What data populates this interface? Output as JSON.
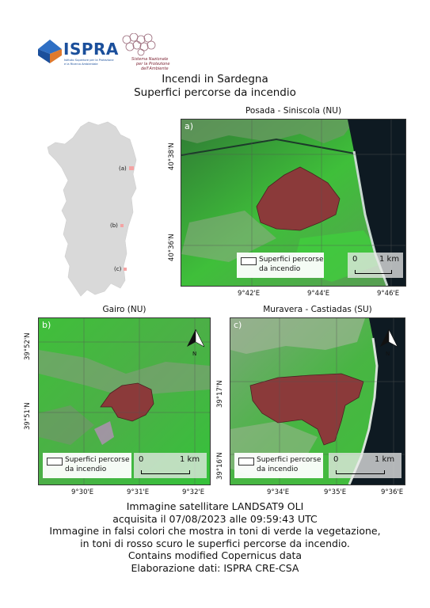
{
  "header": {
    "ispra_name": "ISPRA",
    "ispra_subtitle_1": "Istituto Superiore per la Protezione",
    "ispra_subtitle_2": "e la Ricerca Ambientale",
    "snpa_line_1": "Sistema Nazionale",
    "snpa_line_2": "per la Protezione",
    "snpa_line_3": "dell'Ambiente",
    "brand_color": "#1b4f9b"
  },
  "title_lines": [
    "Incendi in Sardegna",
    "Superfici percorse da incendio"
  ],
  "overview": {
    "markers": [
      {
        "label": "(a)",
        "site": "Posada - Siniscola"
      },
      {
        "label": "(b)",
        "site": "Gairo"
      },
      {
        "label": "(c)",
        "site": "Muravera - Castiadas"
      }
    ],
    "land_color": "#d9d9d9",
    "marker_color": "#f4a3a3"
  },
  "panels": [
    {
      "id": "a",
      "title": "Posada - Siniscola (NU)",
      "letter": "a)",
      "lon_ticks": [
        "9°42'E",
        "9°44'E",
        "9°46'E"
      ],
      "lat_ticks": [
        "40°38'N",
        "40°36'N"
      ],
      "legend_line_1": "Superfici percorse",
      "legend_line_2": "da incendio",
      "scale": {
        "start": "0",
        "end": "1 km"
      }
    },
    {
      "id": "b",
      "title": "Gairo (NU)",
      "letter": "b)",
      "lon_ticks": [
        "9°30'E",
        "9°31'E",
        "9°32'E"
      ],
      "lat_ticks": [
        "39°52'N",
        "39°51'N"
      ],
      "legend_line_1": "Superfici percorse",
      "legend_line_2": "da incendio",
      "scale": {
        "start": "0",
        "end": "1 km"
      },
      "north_label": "N"
    },
    {
      "id": "c",
      "title": "Muravera - Castiadas (SU)",
      "letter": "c)",
      "lon_ticks": [
        "9°34'E",
        "9°35'E",
        "9°36'E"
      ],
      "lat_ticks": [
        "39°17'N",
        "39°16'N"
      ],
      "legend_line_1": "Superfici percorse",
      "legend_line_2": "da incendio",
      "scale": {
        "start": "0",
        "end": "1 km"
      },
      "north_label": "N"
    }
  ],
  "footer_lines": [
    "Immagine satellitare LANDSAT9 OLI",
    "acquisita il 07/08/2023 alle 09:59:43 UTC",
    "Immagine in falsi colori che mostra in toni di verde la vegetazione,",
    "in toni di rosso scuro le superfici percorse da incendio.",
    "Contains modified Copernicus data",
    "Elaborazione dati: ISPRA CRE-CSA"
  ],
  "colors": {
    "vegetation": "#3fbf3a",
    "burned": "#8b3a3a",
    "sea": "#0e1a22"
  }
}
